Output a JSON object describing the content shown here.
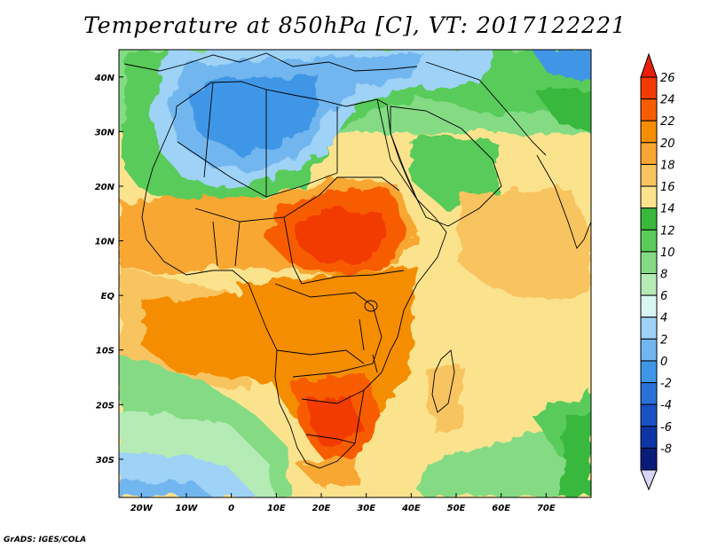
{
  "title": "Temperature at 850hPa [C], VT: 2017122221",
  "credit": "GrADS: IGES/COLA",
  "map": {
    "region": "Africa and western Indian Ocean",
    "x_axis": {
      "range": [
        -25,
        80
      ],
      "ticks": [
        {
          "value": -20,
          "label": "20W"
        },
        {
          "value": -10,
          "label": "10W"
        },
        {
          "value": 0,
          "label": "0"
        },
        {
          "value": 10,
          "label": "10E"
        },
        {
          "value": 20,
          "label": "20E"
        },
        {
          "value": 30,
          "label": "30E"
        },
        {
          "value": 40,
          "label": "40E"
        },
        {
          "value": 50,
          "label": "50E"
        },
        {
          "value": 60,
          "label": "60E"
        },
        {
          "value": 70,
          "label": "70E"
        }
      ]
    },
    "y_axis": {
      "range": [
        -37,
        45
      ],
      "ticks": [
        {
          "value": 40,
          "label": "40N"
        },
        {
          "value": 30,
          "label": "30N"
        },
        {
          "value": 20,
          "label": "20N"
        },
        {
          "value": 10,
          "label": "10N"
        },
        {
          "value": 0,
          "label": "EQ"
        },
        {
          "value": -10,
          "label": "10S"
        },
        {
          "value": -20,
          "label": "20S"
        },
        {
          "value": -30,
          "label": "30S"
        }
      ]
    },
    "colorbar": {
      "levels": [
        {
          "label": "26",
          "color": "#f23b00"
        },
        {
          "label": "24",
          "color": "#f85c00"
        },
        {
          "label": "22",
          "color": "#f58d00"
        },
        {
          "label": "20",
          "color": "#f7a731"
        },
        {
          "label": "18",
          "color": "#f8c460"
        },
        {
          "label": "16",
          "color": "#fbe38e"
        },
        {
          "label": "14",
          "color": "#39b83c"
        },
        {
          "label": "12",
          "color": "#59cb5a"
        },
        {
          "label": "10",
          "color": "#84db84"
        },
        {
          "label": "8",
          "color": "#b5ebb5"
        },
        {
          "label": "6",
          "color": "#d9f6f4"
        },
        {
          "label": "4",
          "color": "#9ed2f7"
        },
        {
          "label": "2",
          "color": "#72b6ef"
        },
        {
          "label": "0",
          "color": "#3f96e6"
        },
        {
          "label": "-2",
          "color": "#2a72d8"
        },
        {
          "label": "-4",
          "color": "#1a52c3"
        },
        {
          "label": "-6",
          "color": "#0e35a6"
        },
        {
          "label": "-8",
          "color": "#0a1c7a"
        }
      ],
      "top_arrow_color": "#e8200a",
      "bottom_arrow_color": "#d8d6f6"
    }
  }
}
